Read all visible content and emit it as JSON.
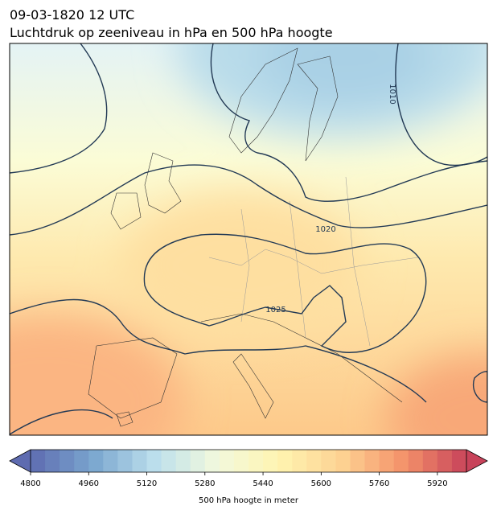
{
  "header": {
    "title": "09-03-1820 12 UTC",
    "subtitle": "Luchtdruk op zeeniveau in hPa en 500 hPa hoogte"
  },
  "map": {
    "contour_labels": [
      "1010",
      "1020",
      "1025"
    ]
  },
  "colorbar": {
    "label": "500 hPa hoogte in meter",
    "range": [
      4800,
      6000
    ],
    "step": 40,
    "ticks": [
      4800,
      4960,
      5120,
      5280,
      5440,
      5600,
      5760,
      5920
    ],
    "colors": [
      "#5e6bb0",
      "#7aa6cf",
      "#bcdfec",
      "#f2f9dd",
      "#fff4b0",
      "#fdd292",
      "#f4926a",
      "#c8435a"
    ]
  }
}
